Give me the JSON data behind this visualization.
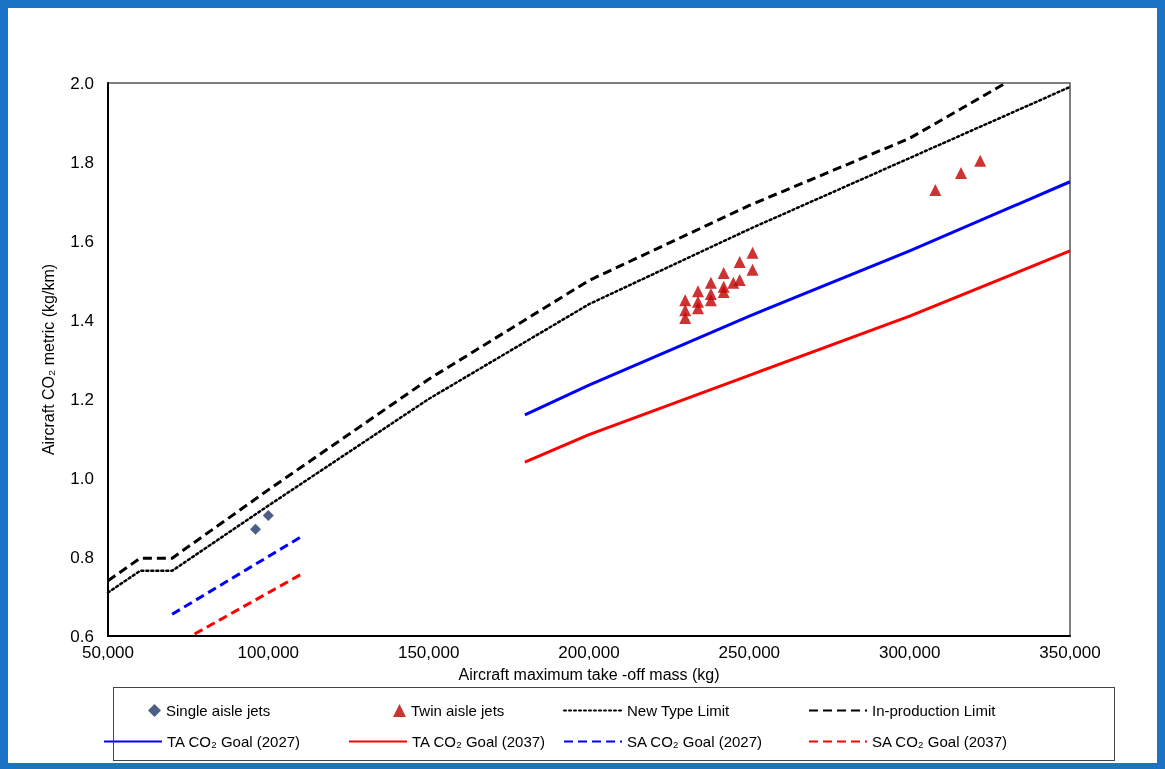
{
  "chart_data": {
    "type": "line",
    "xlabel": "Aircraft maximum take -off mass (kg)",
    "ylabel": "Aircraft CO₂ metric (kg/km)",
    "xlim": [
      50000,
      350000
    ],
    "xticks": [
      {
        "value": 50000,
        "label": "50,000"
      },
      {
        "value": 100000,
        "label": "100,000"
      },
      {
        "value": 150000,
        "label": "150,000"
      },
      {
        "value": 200000,
        "label": "200,000"
      },
      {
        "value": 250000,
        "label": "250,000"
      },
      {
        "value": 300000,
        "label": "300,000"
      },
      {
        "value": 350000,
        "label": "350,000"
      }
    ],
    "ylim": [
      0.6,
      2.0
    ],
    "yticks": [
      {
        "value": 0.6,
        "label": "0.6"
      },
      {
        "value": 0.8,
        "label": "0.8"
      },
      {
        "value": 1.0,
        "label": "1.0"
      },
      {
        "value": 1.2,
        "label": "1.2"
      },
      {
        "value": 1.4,
        "label": "1.4"
      },
      {
        "value": 1.6,
        "label": "1.6"
      },
      {
        "value": 1.8,
        "label": "1.8"
      },
      {
        "value": 2.0,
        "label": "2.0"
      }
    ],
    "grid": false,
    "legend": "bottom",
    "series": [
      {
        "name": "Single aisle jets",
        "type": "scatter",
        "marker": "diamond",
        "color": "#1f3864",
        "x": [
          96000,
          100000
        ],
        "values": [
          0.87,
          0.905
        ]
      },
      {
        "name": "Twin aisle jets",
        "type": "scatter",
        "marker": "triangle",
        "color": "#c00000",
        "x": [
          230000,
          230000,
          230000,
          234000,
          234000,
          234000,
          238000,
          238000,
          238000,
          242000,
          242000,
          242000,
          245000,
          247000,
          247000,
          251000,
          251000,
          308000,
          316000,
          322000
        ],
        "values": [
          1.45,
          1.425,
          1.405,
          1.473,
          1.446,
          1.43,
          1.494,
          1.466,
          1.45,
          1.519,
          1.484,
          1.471,
          1.494,
          1.547,
          1.501,
          1.57,
          1.527,
          1.729,
          1.772,
          1.803
        ]
      },
      {
        "name": "New Type Limit",
        "line_style": "dotted",
        "marker": "none",
        "color": "#000000",
        "x": [
          50000,
          60000,
          70000,
          100000,
          150000,
          200000,
          250000,
          300000,
          350000
        ],
        "values": [
          0.71,
          0.765,
          0.765,
          0.93,
          1.2,
          1.44,
          1.63,
          1.81,
          1.99
        ]
      },
      {
        "name": "In-production Limit",
        "line_style": "dashed",
        "marker": "none",
        "color": "#000000",
        "x": [
          50000,
          60000,
          70000,
          100000,
          150000,
          200000,
          250000,
          300000,
          330000
        ],
        "values": [
          0.74,
          0.797,
          0.797,
          0.97,
          1.25,
          1.5,
          1.69,
          1.86,
          2.0
        ]
      },
      {
        "name": "TA CO₂ Goal (2027)",
        "line_style": "solid",
        "marker": "none",
        "color": "#0000ff",
        "x": [
          180000,
          200000,
          250000,
          300000,
          350000
        ],
        "values": [
          1.16,
          1.235,
          1.41,
          1.575,
          1.75
        ]
      },
      {
        "name": "TA CO₂ Goal (2037)",
        "line_style": "solid",
        "marker": "none",
        "color": "#ff0000",
        "x": [
          180000,
          200000,
          250000,
          300000,
          350000
        ],
        "values": [
          1.04,
          1.11,
          1.26,
          1.41,
          1.575
        ]
      },
      {
        "name": "SA CO₂ Goal (2027)",
        "line_style": "dashed",
        "marker": "none",
        "color": "#0000ff",
        "x": [
          70000,
          110000
        ],
        "values": [
          0.655,
          0.85
        ]
      },
      {
        "name": "SA CO₂ Goal (2037)",
        "line_style": "dashed",
        "marker": "none",
        "color": "#ff0000",
        "x": [
          77000,
          110000
        ],
        "values": [
          0.605,
          0.755
        ]
      }
    ]
  }
}
